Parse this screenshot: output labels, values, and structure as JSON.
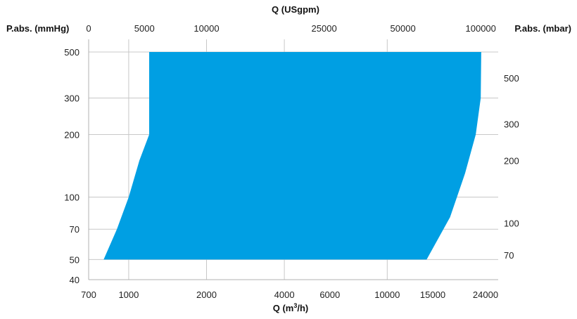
{
  "chart_data": {
    "type": "area",
    "title": "",
    "x_bottom": {
      "label_text": "Q (m",
      "label_sup": "3",
      "label_tail": "/h)",
      "scale": "log",
      "range": [
        700,
        24000
      ],
      "ticks": [
        {
          "value": 700,
          "label": "700"
        },
        {
          "value": 1000,
          "label": "1000"
        },
        {
          "value": 2000,
          "label": "2000"
        },
        {
          "value": 4000,
          "label": "4000"
        },
        {
          "value": 6000,
          "label": "6000"
        },
        {
          "value": 10000,
          "label": "10000"
        },
        {
          "value": 15000,
          "label": "15000"
        },
        {
          "value": 24000,
          "label": "24000"
        }
      ]
    },
    "x_top": {
      "label": "Q (USgpm)",
      "ticks": [
        {
          "label": "0",
          "at_m3h": 700
        },
        {
          "label": "5000",
          "at_m3h": 1150
        },
        {
          "label": "10000",
          "at_m3h": 2000
        },
        {
          "label": "25000",
          "at_m3h": 5700
        },
        {
          "label": "50000",
          "at_m3h": 11500
        },
        {
          "label": "100000",
          "at_m3h": 23000
        }
      ]
    },
    "y_left": {
      "label": "P.abs. (mmHg)",
      "scale": "log",
      "range": [
        40,
        500
      ],
      "ticks": [
        {
          "value": 500,
          "label": "500"
        },
        {
          "value": 300,
          "label": "300"
        },
        {
          "value": 200,
          "label": "200"
        },
        {
          "value": 100,
          "label": "100"
        },
        {
          "value": 70,
          "label": "70"
        },
        {
          "value": 50,
          "label": "50"
        },
        {
          "value": 40,
          "label": "40"
        }
      ]
    },
    "y_right": {
      "label": "P.abs. (mbar)",
      "ticks": [
        {
          "label": "500",
          "at_mmHg": 375
        },
        {
          "label": "300",
          "at_mmHg": 225
        },
        {
          "label": "200",
          "at_mmHg": 150
        },
        {
          "label": "100",
          "at_mmHg": 75
        },
        {
          "label": "70",
          "at_mmHg": 52.5
        }
      ]
    },
    "gridlines_x": [
      1000,
      2000,
      4000,
      10000
    ],
    "gridlines_y": [
      500,
      300,
      200,
      100,
      70,
      50
    ],
    "grid": true,
    "series": [
      {
        "color": "#009fe3",
        "polygon": [
          [
            1200,
            500
          ],
          [
            23100,
            500
          ],
          [
            23000,
            300
          ],
          [
            22000,
            200
          ],
          [
            20000,
            130
          ],
          [
            17500,
            80
          ],
          [
            14200,
            50
          ],
          [
            800,
            50
          ],
          [
            900,
            70
          ],
          [
            1000,
            100
          ],
          [
            1100,
            150
          ],
          [
            1200,
            200
          ]
        ]
      }
    ]
  }
}
